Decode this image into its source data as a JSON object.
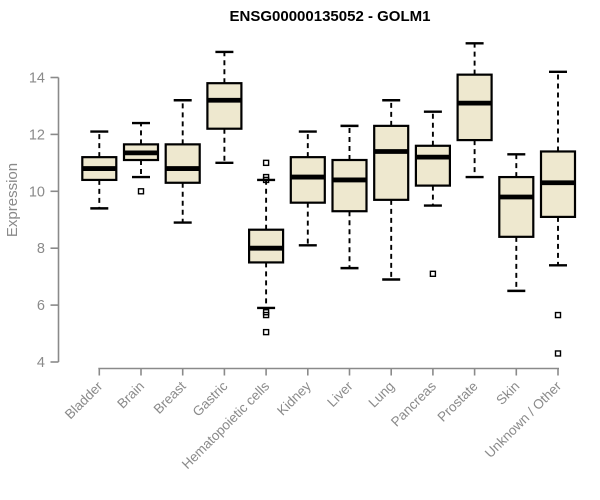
{
  "chart_data": {
    "type": "boxplot",
    "title": "ENSG00000135052 - GOLM1",
    "ylabel": "Expression",
    "xlabel": "",
    "ylim": [
      4,
      15.3
    ],
    "yticks": [
      4,
      6,
      8,
      10,
      12,
      14
    ],
    "grid": false,
    "legend": false,
    "categories": [
      "Bladder",
      "Brain",
      "Breast",
      "Gastric",
      "Hematopoietic cells",
      "Kidney",
      "Liver",
      "Lung",
      "Pancreas",
      "Prostate",
      "Skin",
      "Unknown / Other"
    ],
    "boxes": [
      {
        "category": "Bladder",
        "whisker_low": 9.4,
        "q1": 10.4,
        "median": 10.8,
        "q3": 11.2,
        "whisker_high": 12.1,
        "outliers": []
      },
      {
        "category": "Brain",
        "whisker_low": 10.5,
        "q1": 11.1,
        "median": 11.35,
        "q3": 11.65,
        "whisker_high": 12.4,
        "outliers": [
          10.0
        ]
      },
      {
        "category": "Breast",
        "whisker_low": 8.9,
        "q1": 10.3,
        "median": 10.8,
        "q3": 11.65,
        "whisker_high": 13.2,
        "outliers": []
      },
      {
        "category": "Gastric",
        "whisker_low": 11.0,
        "q1": 12.2,
        "median": 13.2,
        "q3": 13.8,
        "whisker_high": 14.9,
        "outliers": []
      },
      {
        "category": "Hematopoietic cells",
        "whisker_low": 5.9,
        "q1": 7.5,
        "median": 8.0,
        "q3": 8.65,
        "whisker_high": 10.4,
        "outliers": [
          11.0,
          10.5,
          10.4,
          5.75,
          5.65,
          5.05
        ]
      },
      {
        "category": "Kidney",
        "whisker_low": 8.1,
        "q1": 9.6,
        "median": 10.5,
        "q3": 11.2,
        "whisker_high": 12.1,
        "outliers": []
      },
      {
        "category": "Liver",
        "whisker_low": 7.3,
        "q1": 9.3,
        "median": 10.4,
        "q3": 11.1,
        "whisker_high": 12.3,
        "outliers": []
      },
      {
        "category": "Lung",
        "whisker_low": 6.9,
        "q1": 9.7,
        "median": 11.4,
        "q3": 12.3,
        "whisker_high": 13.2,
        "outliers": []
      },
      {
        "category": "Pancreas",
        "whisker_low": 9.5,
        "q1": 10.2,
        "median": 11.2,
        "q3": 11.6,
        "whisker_high": 12.8,
        "outliers": [
          7.1
        ]
      },
      {
        "category": "Prostate",
        "whisker_low": 10.5,
        "q1": 11.8,
        "median": 13.1,
        "q3": 14.1,
        "whisker_high": 15.2,
        "outliers": []
      },
      {
        "category": "Skin",
        "whisker_low": 6.5,
        "q1": 8.4,
        "median": 9.8,
        "q3": 10.5,
        "whisker_high": 11.3,
        "outliers": []
      },
      {
        "category": "Unknown / Other",
        "whisker_low": 7.4,
        "q1": 9.1,
        "median": 10.3,
        "q3": 11.4,
        "whisker_high": 14.2,
        "outliers": [
          5.65,
          4.3
        ]
      }
    ],
    "colors": {
      "box_fill": "#EEE8CF",
      "box_stroke": "#000000",
      "median": "#000000",
      "whisker": "#000000",
      "outlier": "#000000",
      "axis": "#8A8A8A",
      "tick_label": "#8A8A8A",
      "axis_label": "#8A8A8A",
      "title": "#000000",
      "background": "#FFFFFF"
    }
  }
}
